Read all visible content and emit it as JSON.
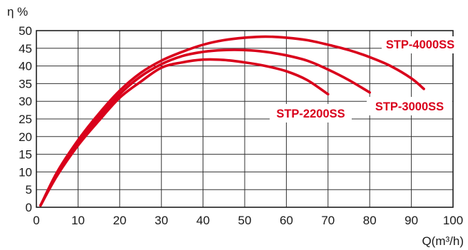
{
  "chart_data": {
    "type": "line",
    "ylabel": "η %",
    "xlabel": "Q(m³/h)",
    "xlim": [
      0,
      100
    ],
    "ylim": [
      0,
      50
    ],
    "xticks": [
      "0",
      "10",
      "20",
      "30",
      "40",
      "50",
      "60",
      "70",
      "80",
      "90",
      "100"
    ],
    "yticks": [
      "0",
      "5",
      "10",
      "15",
      "20",
      "25",
      "30",
      "35",
      "40",
      "45",
      "50"
    ],
    "grid": true,
    "series_color": "#d9001b",
    "series": [
      {
        "name": "STP-2200SS",
        "points": [
          [
            1,
            0.5
          ],
          [
            5,
            9
          ],
          [
            10,
            17.5
          ],
          [
            15,
            24.5
          ],
          [
            20,
            31
          ],
          [
            25,
            35.5
          ],
          [
            30,
            39.5
          ],
          [
            35,
            41
          ],
          [
            40,
            41.8
          ],
          [
            45,
            41.7
          ],
          [
            50,
            41
          ],
          [
            55,
            40
          ],
          [
            60,
            38.5
          ],
          [
            65,
            36
          ],
          [
            70,
            32
          ]
        ]
      },
      {
        "name": "STP-3000SS",
        "points": [
          [
            1,
            0.5
          ],
          [
            5,
            9.5
          ],
          [
            10,
            18.5
          ],
          [
            15,
            25.5
          ],
          [
            20,
            32
          ],
          [
            25,
            37
          ],
          [
            30,
            40.5
          ],
          [
            35,
            42.8
          ],
          [
            40,
            44
          ],
          [
            45,
            44.5
          ],
          [
            50,
            44.5
          ],
          [
            55,
            44
          ],
          [
            60,
            43
          ],
          [
            65,
            41.5
          ],
          [
            70,
            39
          ],
          [
            75,
            36
          ],
          [
            80,
            32.5
          ]
        ]
      },
      {
        "name": "STP-4000SS",
        "points": [
          [
            1,
            0.5
          ],
          [
            5,
            10
          ],
          [
            10,
            19
          ],
          [
            15,
            26.5
          ],
          [
            20,
            33
          ],
          [
            25,
            38
          ],
          [
            30,
            41.5
          ],
          [
            35,
            44
          ],
          [
            40,
            46
          ],
          [
            45,
            47.3
          ],
          [
            50,
            48
          ],
          [
            55,
            48.3
          ],
          [
            60,
            48
          ],
          [
            65,
            47.3
          ],
          [
            70,
            46
          ],
          [
            75,
            44.5
          ],
          [
            80,
            42.5
          ],
          [
            85,
            40
          ],
          [
            90,
            36.5
          ],
          [
            93,
            33.5
          ]
        ]
      }
    ]
  }
}
